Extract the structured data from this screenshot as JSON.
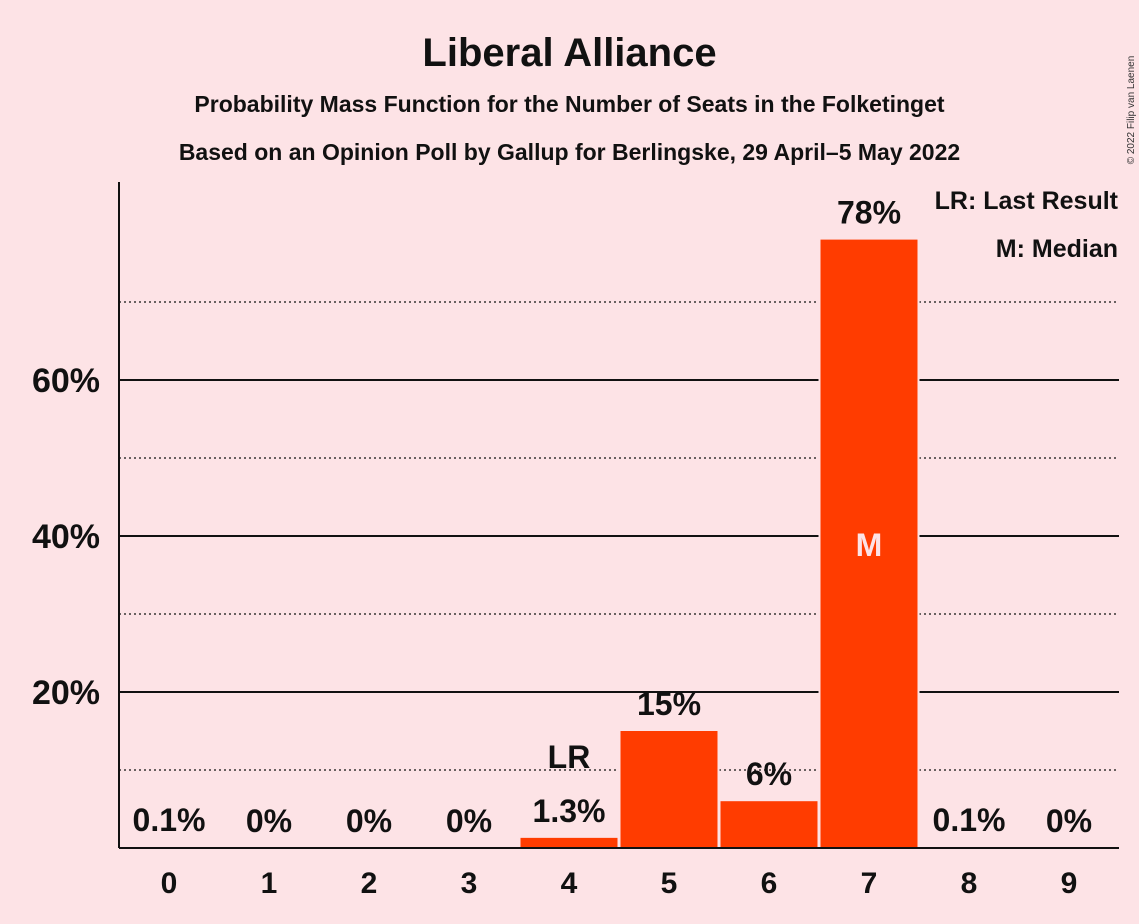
{
  "chart_data": {
    "type": "bar",
    "title": "Liberal Alliance",
    "subtitle_1": "Probability Mass Function for the Number of Seats in the Folketinget",
    "subtitle_2": "Based on an Opinion Poll by Gallup for Berlingske, 29 April–5 May 2022",
    "copyright": "© 2022 Filip van Laenen",
    "categories": [
      "0",
      "1",
      "2",
      "3",
      "4",
      "5",
      "6",
      "7",
      "8",
      "9"
    ],
    "values": [
      0.1,
      0,
      0,
      0,
      1.3,
      15,
      6,
      78,
      0.1,
      0
    ],
    "value_labels": [
      "0.1%",
      "0%",
      "0%",
      "0%",
      "1.3%",
      "15%",
      "6%",
      "78%",
      "0.1%",
      "0%"
    ],
    "ylim": [
      0,
      85
    ],
    "yticks": [
      20,
      40,
      60
    ],
    "ytick_labels": [
      "20%",
      "40%",
      "60%"
    ],
    "minor_gridlines": [
      10,
      30,
      50,
      70
    ],
    "bar_color": "#ff3c00",
    "last_result_index": 4,
    "last_result_marker": "LR",
    "median_index": 7,
    "median_marker": "M",
    "legend": [
      "LR: Last Result",
      "M: Median"
    ],
    "legend_position": "top-right"
  }
}
